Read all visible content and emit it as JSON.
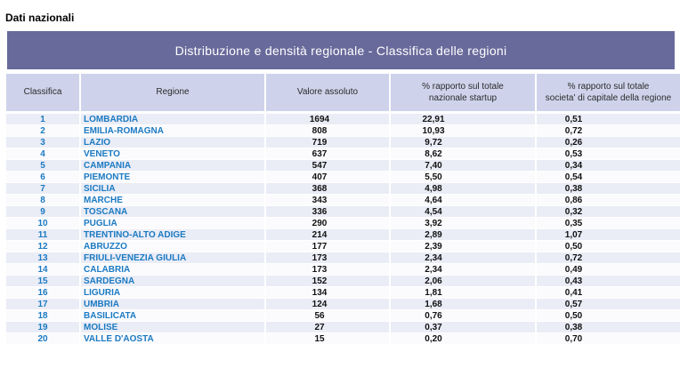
{
  "page": {
    "title": "Dati nazionali"
  },
  "banner": {
    "title": "Distribuzione e densità regionale - Classifica delle regioni"
  },
  "colors": {
    "banner_bg": "#686A9B",
    "header_bg": "#CED3EB",
    "row_odd_bg": "#EAECF6",
    "row_even_bg": "#FBFBFE",
    "link_text": "#1B7AC2",
    "value_text": "#111111"
  },
  "table": {
    "columns": [
      {
        "label": "Classifica"
      },
      {
        "label": "Regione"
      },
      {
        "label": "Valore assoluto"
      },
      {
        "label": "% rapporto sul totale\nnazionale startup"
      },
      {
        "label": "% rapporto sul totale\nsocieta' di capitale della regione"
      }
    ],
    "rows": [
      {
        "rank": "1",
        "region": "LOMBARDIA",
        "value": "1694",
        "pct_national": "22,91",
        "pct_regional": "0,51"
      },
      {
        "rank": "2",
        "region": "EMILIA-ROMAGNA",
        "value": "808",
        "pct_national": "10,93",
        "pct_regional": "0,72"
      },
      {
        "rank": "3",
        "region": "LAZIO",
        "value": "719",
        "pct_national": "9,72",
        "pct_regional": "0,26"
      },
      {
        "rank": "4",
        "region": "VENETO",
        "value": "637",
        "pct_national": "8,62",
        "pct_regional": "0,53"
      },
      {
        "rank": "5",
        "region": "CAMPANIA",
        "value": "547",
        "pct_national": "7,40",
        "pct_regional": "0,34"
      },
      {
        "rank": "6",
        "region": "PIEMONTE",
        "value": "407",
        "pct_national": "5,50",
        "pct_regional": "0,54"
      },
      {
        "rank": "7",
        "region": "SICILIA",
        "value": "368",
        "pct_national": "4,98",
        "pct_regional": "0,38"
      },
      {
        "rank": "8",
        "region": "MARCHE",
        "value": "343",
        "pct_national": "4,64",
        "pct_regional": "0,86"
      },
      {
        "rank": "9",
        "region": "TOSCANA",
        "value": "336",
        "pct_national": "4,54",
        "pct_regional": "0,32"
      },
      {
        "rank": "10",
        "region": "PUGLIA",
        "value": "290",
        "pct_national": "3,92",
        "pct_regional": "0,35"
      },
      {
        "rank": "11",
        "region": "TRENTINO-ALTO ADIGE",
        "value": "214",
        "pct_national": "2,89",
        "pct_regional": "1,07"
      },
      {
        "rank": "12",
        "region": "ABRUZZO",
        "value": "177",
        "pct_national": "2,39",
        "pct_regional": "0,50"
      },
      {
        "rank": "13",
        "region": "FRIULI-VENEZIA GIULIA",
        "value": "173",
        "pct_national": "2,34",
        "pct_regional": "0,72"
      },
      {
        "rank": "14",
        "region": "CALABRIA",
        "value": "173",
        "pct_national": "2,34",
        "pct_regional": "0,49"
      },
      {
        "rank": "15",
        "region": "SARDEGNA",
        "value": "152",
        "pct_national": "2,06",
        "pct_regional": "0,43"
      },
      {
        "rank": "16",
        "region": "LIGURIA",
        "value": "134",
        "pct_national": "1,81",
        "pct_regional": "0,41"
      },
      {
        "rank": "17",
        "region": "UMBRIA",
        "value": "124",
        "pct_national": "1,68",
        "pct_regional": "0,57"
      },
      {
        "rank": "18",
        "region": "BASILICATA",
        "value": "56",
        "pct_national": "0,76",
        "pct_regional": "0,50"
      },
      {
        "rank": "19",
        "region": "MOLISE",
        "value": "27",
        "pct_national": "0,37",
        "pct_regional": "0,38"
      },
      {
        "rank": "20",
        "region": "VALLE D'AOSTA",
        "value": "15",
        "pct_national": "0,20",
        "pct_regional": "0,70"
      }
    ]
  }
}
